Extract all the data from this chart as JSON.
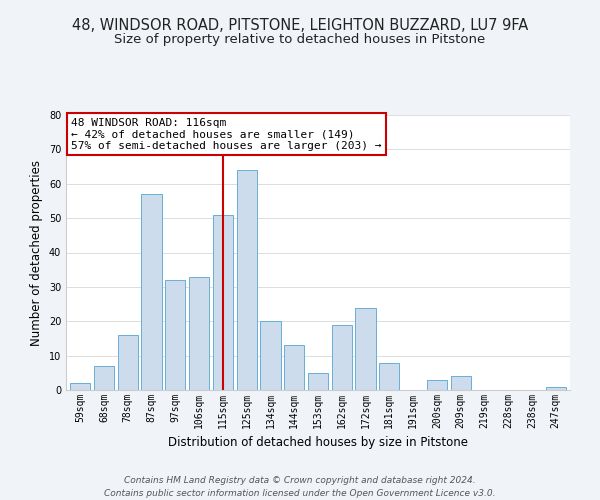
{
  "title": "48, WINDSOR ROAD, PITSTONE, LEIGHTON BUZZARD, LU7 9FA",
  "subtitle": "Size of property relative to detached houses in Pitstone",
  "xlabel": "Distribution of detached houses by size in Pitstone",
  "ylabel": "Number of detached properties",
  "categories": [
    "59sqm",
    "68sqm",
    "78sqm",
    "87sqm",
    "97sqm",
    "106sqm",
    "115sqm",
    "125sqm",
    "134sqm",
    "144sqm",
    "153sqm",
    "162sqm",
    "172sqm",
    "181sqm",
    "191sqm",
    "200sqm",
    "209sqm",
    "219sqm",
    "228sqm",
    "238sqm",
    "247sqm"
  ],
  "values": [
    2,
    7,
    16,
    57,
    32,
    33,
    51,
    64,
    20,
    13,
    5,
    19,
    24,
    8,
    0,
    3,
    4,
    0,
    0,
    0,
    1
  ],
  "bar_color": "#ccdcec",
  "bar_edge_color": "#6aafd6",
  "highlight_index": 6,
  "highlight_line_color": "#cc0000",
  "ylim": [
    0,
    80
  ],
  "yticks": [
    0,
    10,
    20,
    30,
    40,
    50,
    60,
    70,
    80
  ],
  "annotation_title": "48 WINDSOR ROAD: 116sqm",
  "annotation_line1": "← 42% of detached houses are smaller (149)",
  "annotation_line2": "57% of semi-detached houses are larger (203) →",
  "annotation_box_color": "#ffffff",
  "annotation_border_color": "#cc0000",
  "footer_line1": "Contains HM Land Registry data © Crown copyright and database right 2024.",
  "footer_line2": "Contains public sector information licensed under the Open Government Licence v3.0.",
  "background_color": "#f0f4f8",
  "plot_background_color": "#ffffff",
  "title_fontsize": 10.5,
  "subtitle_fontsize": 9.5,
  "axis_label_fontsize": 8.5,
  "tick_fontsize": 7,
  "annotation_fontsize": 8,
  "footer_fontsize": 6.5
}
